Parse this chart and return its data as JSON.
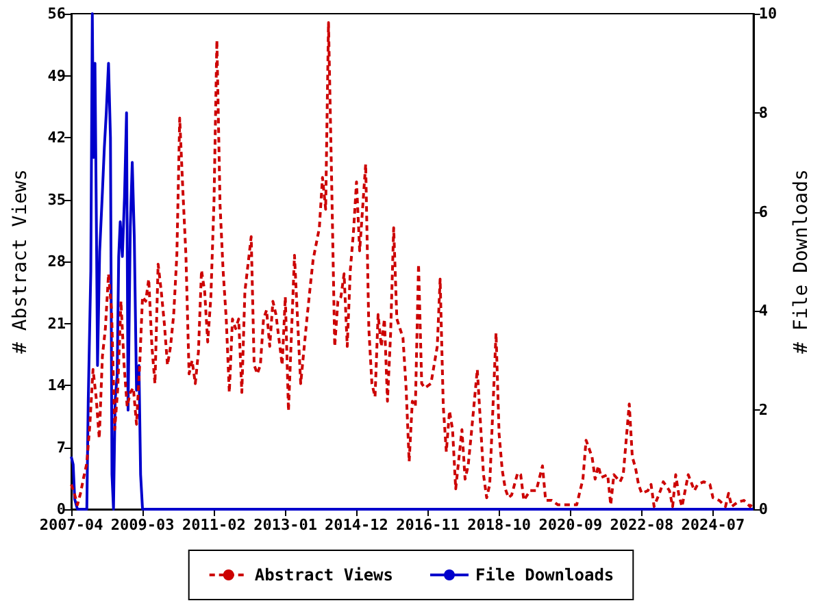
{
  "chart_data": {
    "type": "line",
    "xlabel": null,
    "ylabel": "# Abstract Views",
    "y2label": "# File Downloads",
    "xlim": [
      "2007-04",
      "2025-08"
    ],
    "xticks": [
      "2007-04",
      "2009-03",
      "2011-02",
      "2013-01",
      "2014-12",
      "2016-11",
      "2018-10",
      "2020-09",
      "2022-08",
      "2024-07"
    ],
    "ylim": [
      0,
      56
    ],
    "yticks": [
      0,
      7,
      14,
      21,
      28,
      35,
      42,
      49,
      56
    ],
    "y2lim": [
      0,
      10
    ],
    "y2ticks": [
      0,
      2,
      4,
      6,
      8,
      10
    ],
    "grid": false,
    "legend": "bottom",
    "marker": "none",
    "series": [
      {
        "name": "Abstract Views",
        "color": "#cc0000",
        "line_style": "dashed",
        "axis": "y",
        "x": [
          "2007-04",
          "2007-05",
          "2007-06",
          "2007-07",
          "2007-08",
          "2007-09",
          "2007-10",
          "2007-11",
          "2007-12",
          "2008-01",
          "2008-02",
          "2008-03",
          "2008-04",
          "2008-05",
          "2008-06",
          "2008-07",
          "2008-08",
          "2008-09",
          "2008-10",
          "2008-11",
          "2008-12",
          "2009-01",
          "2009-02",
          "2009-03",
          "2009-04",
          "2009-05",
          "2009-06",
          "2009-07",
          "2009-08",
          "2009-09",
          "2009-10",
          "2009-11",
          "2009-12",
          "2010-01",
          "2010-02",
          "2010-03",
          "2010-04",
          "2010-05",
          "2010-06",
          "2010-07",
          "2010-08",
          "2010-09",
          "2010-10",
          "2010-11",
          "2010-12",
          "2011-01",
          "2011-02",
          "2011-03",
          "2011-04",
          "2011-05",
          "2011-06",
          "2011-07",
          "2011-08",
          "2011-09",
          "2011-10",
          "2011-11",
          "2011-12",
          "2012-01",
          "2012-02",
          "2012-03",
          "2012-04",
          "2012-05",
          "2012-06",
          "2012-07",
          "2012-08",
          "2012-09",
          "2012-10",
          "2012-12",
          "2013-01",
          "2013-02",
          "2013-04",
          "2013-05",
          "2013-06",
          "2013-08",
          "2013-09",
          "2013-10",
          "2013-12",
          "2014-01",
          "2014-02",
          "2014-03",
          "2014-04",
          "2014-05",
          "2014-06",
          "2014-07",
          "2014-08",
          "2014-09",
          "2014-10",
          "2014-11",
          "2014-12",
          "2015-01",
          "2015-03",
          "2015-04",
          "2015-05",
          "2015-06",
          "2015-07",
          "2015-08",
          "2015-09",
          "2015-10",
          "2015-11",
          "2015-12",
          "2016-01",
          "2016-03",
          "2016-04",
          "2016-05",
          "2016-06",
          "2016-07",
          "2016-08",
          "2016-09",
          "2016-10",
          "2016-12",
          "2017-02",
          "2017-03",
          "2017-04",
          "2017-05",
          "2017-06",
          "2017-07",
          "2017-08",
          "2017-10",
          "2017-11",
          "2017-12",
          "2018-01",
          "2018-03",
          "2018-05",
          "2018-06",
          "2018-07",
          "2018-09",
          "2018-10",
          "2018-11",
          "2018-12",
          "2019-01",
          "2019-02",
          "2019-04",
          "2019-05",
          "2019-06",
          "2019-08",
          "2019-10",
          "2019-12",
          "2020-01",
          "2020-03",
          "2020-05",
          "2020-08",
          "2020-11",
          "2021-01",
          "2021-02",
          "2021-04",
          "2021-05",
          "2021-06",
          "2021-07",
          "2021-09",
          "2021-10",
          "2021-11",
          "2022-01",
          "2022-02",
          "2022-04",
          "2022-05",
          "2022-06",
          "2022-07",
          "2022-08",
          "2022-10",
          "2022-11",
          "2022-12",
          "2023-02",
          "2023-03",
          "2023-05",
          "2023-06",
          "2023-07",
          "2023-08",
          "2023-09",
          "2023-11",
          "2024-01",
          "2024-02",
          "2024-04",
          "2024-06",
          "2024-07",
          "2024-09",
          "2024-11",
          "2024-12",
          "2025-01",
          "2025-03",
          "2025-05",
          "2025-07",
          "2025-08"
        ],
        "values": [
          2.8,
          1.8,
          0.5,
          1.8,
          3.6,
          5.2,
          9.6,
          15.8,
          12.7,
          8,
          17.3,
          20.4,
          26.6,
          22.5,
          9,
          13.7,
          23.5,
          16.3,
          11.6,
          13.2,
          13.7,
          9.6,
          16.3,
          24,
          23.5,
          26,
          18.4,
          14.2,
          27.7,
          24.6,
          21,
          16.3,
          18.4,
          22,
          28.7,
          44.2,
          36,
          28.7,
          15.3,
          16.8,
          14.2,
          17.8,
          27,
          24.6,
          18.9,
          24,
          34.9,
          53,
          34.4,
          27,
          21.5,
          13.2,
          21.5,
          20.4,
          21.5,
          13.2,
          24.6,
          27.7,
          30.8,
          16.3,
          15.3,
          16.3,
          21.5,
          22.5,
          18.4,
          23.5,
          22,
          16.3,
          24,
          11.1,
          28.7,
          21.5,
          14.2,
          21.5,
          25,
          28.2,
          31.8,
          37.5,
          33.9,
          55,
          37,
          18.4,
          23.5,
          24,
          26.6,
          18.4,
          27,
          31.3,
          37,
          29.2,
          39,
          20.4,
          14.2,
          12.7,
          22,
          18.4,
          21.5,
          12.2,
          19.9,
          31.8,
          21.5,
          19.4,
          13.7,
          5.4,
          12.2,
          11.6,
          27.7,
          14.2,
          13.7,
          14.2,
          18.4,
          26,
          11.6,
          6.5,
          11.1,
          9,
          2.3,
          9,
          3.4,
          4.9,
          8.5,
          15.8,
          3.9,
          1.3,
          2.8,
          19.9,
          8.5,
          4.4,
          2.3,
          1.3,
          1.6,
          4.1,
          3.9,
          1,
          2.1,
          2.1,
          4.9,
          1,
          1,
          0.5,
          0.5,
          0.5,
          3.4,
          7.8,
          5.9,
          3.4,
          4.9,
          3.6,
          3.9,
          0.5,
          3.9,
          3.1,
          3.9,
          11.9,
          5.9,
          4.7,
          2.8,
          1.8,
          2.1,
          2.8,
          0.3,
          2.1,
          3.1,
          2.1,
          0.3,
          3.9,
          1.6,
          0.3,
          3.9,
          2.1,
          2.8,
          3.1,
          2.8,
          1.3,
          1,
          0.3,
          1.8,
          0.3,
          0.8,
          1,
          0.3,
          0.8
        ]
      },
      {
        "name": "File Downloads",
        "color": "#0000cc",
        "line_style": "solid",
        "axis": "y2",
        "x": [
          "2007-04-01",
          "2007-04-20",
          "2007-05-05",
          "2007-06-01",
          "2007-09-01",
          "2007-09-15",
          "2007-10-10",
          "2007-10-25",
          "2007-11-05",
          "2007-11-20",
          "2007-12-05",
          "2007-12-15",
          "2008-01-05",
          "2008-02-01",
          "2008-02-20",
          "2008-03-10",
          "2008-04-01",
          "2008-04-20",
          "2008-05-05",
          "2008-05-20",
          "2008-06-05",
          "2008-06-25",
          "2008-07-10",
          "2008-07-25",
          "2008-08-15",
          "2008-09-05",
          "2008-09-25",
          "2008-10-10",
          "2008-11-01",
          "2008-11-20",
          "2008-12-10",
          "2009-01-01",
          "2009-01-25",
          "2009-02-10",
          "2009-03-01",
          "2025-08-01"
        ],
        "values": [
          1.06,
          0.9,
          0.2,
          0,
          0,
          2.2,
          4.8,
          10,
          7.1,
          9,
          5.5,
          2.9,
          5.2,
          6.4,
          7.3,
          8,
          9,
          7.5,
          0.7,
          0,
          2.2,
          2.7,
          5.1,
          5.8,
          5.1,
          6.3,
          8,
          2,
          5.7,
          7,
          5.5,
          2.4,
          2.9,
          0.7,
          0,
          0
        ]
      }
    ]
  }
}
